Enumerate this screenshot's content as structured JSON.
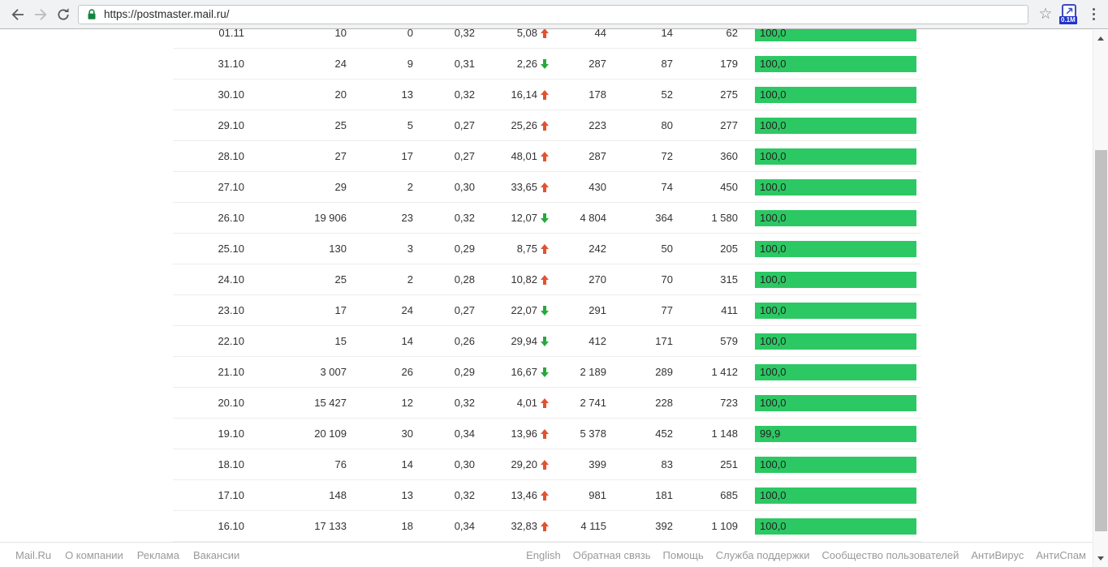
{
  "browser": {
    "url": "https://postmaster.mail.ru/",
    "extension_badge": "0.1M"
  },
  "colors": {
    "bar_green": "#2cc863",
    "trend_up": "#e2522e",
    "trend_down": "#27a83d",
    "lock_green": "#13853e"
  },
  "table": {
    "rows": [
      {
        "date": "01.11",
        "c1": "10",
        "c2": "0",
        "c3": "0,32",
        "trend": {
          "value": "5,08",
          "direction": "up"
        },
        "c5": "44",
        "c6": "14",
        "c7": "62",
        "bar": {
          "label": "100,0",
          "percent": 100
        }
      },
      {
        "date": "31.10",
        "c1": "24",
        "c2": "9",
        "c3": "0,31",
        "trend": {
          "value": "2,26",
          "direction": "down"
        },
        "c5": "287",
        "c6": "87",
        "c7": "179",
        "bar": {
          "label": "100,0",
          "percent": 100
        }
      },
      {
        "date": "30.10",
        "c1": "20",
        "c2": "13",
        "c3": "0,32",
        "trend": {
          "value": "16,14",
          "direction": "up"
        },
        "c5": "178",
        "c6": "52",
        "c7": "275",
        "bar": {
          "label": "100,0",
          "percent": 100
        }
      },
      {
        "date": "29.10",
        "c1": "25",
        "c2": "5",
        "c3": "0,27",
        "trend": {
          "value": "25,26",
          "direction": "up"
        },
        "c5": "223",
        "c6": "80",
        "c7": "277",
        "bar": {
          "label": "100,0",
          "percent": 100
        }
      },
      {
        "date": "28.10",
        "c1": "27",
        "c2": "17",
        "c3": "0,27",
        "trend": {
          "value": "48,01",
          "direction": "up"
        },
        "c5": "287",
        "c6": "72",
        "c7": "360",
        "bar": {
          "label": "100,0",
          "percent": 100
        }
      },
      {
        "date": "27.10",
        "c1": "29",
        "c2": "2",
        "c3": "0,30",
        "trend": {
          "value": "33,65",
          "direction": "up"
        },
        "c5": "430",
        "c6": "74",
        "c7": "450",
        "bar": {
          "label": "100,0",
          "percent": 100
        }
      },
      {
        "date": "26.10",
        "c1": "19 906",
        "c2": "23",
        "c3": "0,32",
        "trend": {
          "value": "12,07",
          "direction": "down"
        },
        "c5": "4 804",
        "c6": "364",
        "c7": "1 580",
        "bar": {
          "label": "100,0",
          "percent": 100
        }
      },
      {
        "date": "25.10",
        "c1": "130",
        "c2": "3",
        "c3": "0,29",
        "trend": {
          "value": "8,75",
          "direction": "up"
        },
        "c5": "242",
        "c6": "50",
        "c7": "205",
        "bar": {
          "label": "100,0",
          "percent": 100
        }
      },
      {
        "date": "24.10",
        "c1": "25",
        "c2": "2",
        "c3": "0,28",
        "trend": {
          "value": "10,82",
          "direction": "up"
        },
        "c5": "270",
        "c6": "70",
        "c7": "315",
        "bar": {
          "label": "100,0",
          "percent": 100
        }
      },
      {
        "date": "23.10",
        "c1": "17",
        "c2": "24",
        "c3": "0,27",
        "trend": {
          "value": "22,07",
          "direction": "down"
        },
        "c5": "291",
        "c6": "77",
        "c7": "411",
        "bar": {
          "label": "100,0",
          "percent": 100
        }
      },
      {
        "date": "22.10",
        "c1": "15",
        "c2": "14",
        "c3": "0,26",
        "trend": {
          "value": "29,94",
          "direction": "down"
        },
        "c5": "412",
        "c6": "171",
        "c7": "579",
        "bar": {
          "label": "100,0",
          "percent": 100
        }
      },
      {
        "date": "21.10",
        "c1": "3 007",
        "c2": "26",
        "c3": "0,29",
        "trend": {
          "value": "16,67",
          "direction": "down"
        },
        "c5": "2 189",
        "c6": "289",
        "c7": "1 412",
        "bar": {
          "label": "100,0",
          "percent": 100
        }
      },
      {
        "date": "20.10",
        "c1": "15 427",
        "c2": "12",
        "c3": "0,32",
        "trend": {
          "value": "4,01",
          "direction": "up"
        },
        "c5": "2 741",
        "c6": "228",
        "c7": "723",
        "bar": {
          "label": "100,0",
          "percent": 100
        }
      },
      {
        "date": "19.10",
        "c1": "20 109",
        "c2": "30",
        "c3": "0,34",
        "trend": {
          "value": "13,96",
          "direction": "up"
        },
        "c5": "5 378",
        "c6": "452",
        "c7": "1 148",
        "bar": {
          "label": "99,9",
          "percent": 99.9
        }
      },
      {
        "date": "18.10",
        "c1": "76",
        "c2": "14",
        "c3": "0,30",
        "trend": {
          "value": "29,20",
          "direction": "up"
        },
        "c5": "399",
        "c6": "83",
        "c7": "251",
        "bar": {
          "label": "100,0",
          "percent": 100
        }
      },
      {
        "date": "17.10",
        "c1": "148",
        "c2": "13",
        "c3": "0,32",
        "trend": {
          "value": "13,46",
          "direction": "up"
        },
        "c5": "981",
        "c6": "181",
        "c7": "685",
        "bar": {
          "label": "100,0",
          "percent": 100
        }
      },
      {
        "date": "16.10",
        "c1": "17 133",
        "c2": "18",
        "c3": "0,34",
        "trend": {
          "value": "32,83",
          "direction": "up"
        },
        "c5": "4 115",
        "c6": "392",
        "c7": "1 109",
        "bar": {
          "label": "100,0",
          "percent": 100
        }
      }
    ]
  },
  "footer": {
    "left_links": [
      "Mail.Ru",
      "О компании",
      "Реклама",
      "Вакансии"
    ],
    "right_links": [
      "English",
      "Обратная связь",
      "Помощь",
      "Служба поддержки",
      "Сообщество пользователей",
      "АнтиВирус",
      "АнтиСпам"
    ]
  }
}
